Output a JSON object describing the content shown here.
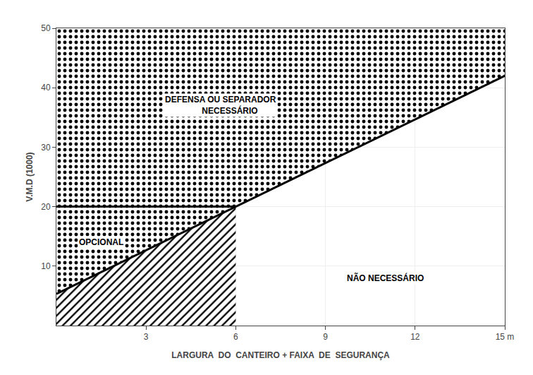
{
  "chart_data": {
    "type": "line",
    "xlabel": "LARGURA  DO  CANTEIRO + FAIXA  DE  SEGURANÇA",
    "ylabel": "V.M.D (1000)",
    "xlim": [
      0,
      15
    ],
    "ylim": [
      0,
      50
    ],
    "xticks": [
      3,
      6,
      9,
      12,
      {
        "value": 15,
        "label": "15 m"
      }
    ],
    "yticks": [
      10,
      20,
      30,
      40,
      50
    ],
    "grid": true,
    "series": [
      {
        "type": "area",
        "marker": "dots",
        "color": "#000000",
        "x": [
          0,
          15,
          15,
          0
        ],
        "values": [
          5.333,
          42.0,
          50,
          50
        ]
      },
      {
        "type": "area",
        "marker": "hatch",
        "color": "#000000",
        "x": [
          0,
          6.0000818,
          6.0000818,
          0
        ],
        "values": [
          5.333,
          20,
          0,
          0
        ]
      },
      {
        "type": "line",
        "color": "#000000",
        "x": [
          0,
          15
        ],
        "values": [
          5.333,
          42.0
        ]
      },
      {
        "type": "line",
        "color": "#000000",
        "x": [
          0,
          6.0000818
        ],
        "values": [
          20,
          20
        ]
      }
    ],
    "annotations": [
      {
        "text": "DEFENSA OU SEPARADOR\n        NECESSÁRIO",
        "x": 5.5,
        "y": 37
      },
      {
        "text": "OPCIONAL",
        "x": 1.5,
        "y": 14
      },
      {
        "text": "NÃO NECESSÁRIO",
        "x": 11,
        "y": 8
      }
    ]
  }
}
